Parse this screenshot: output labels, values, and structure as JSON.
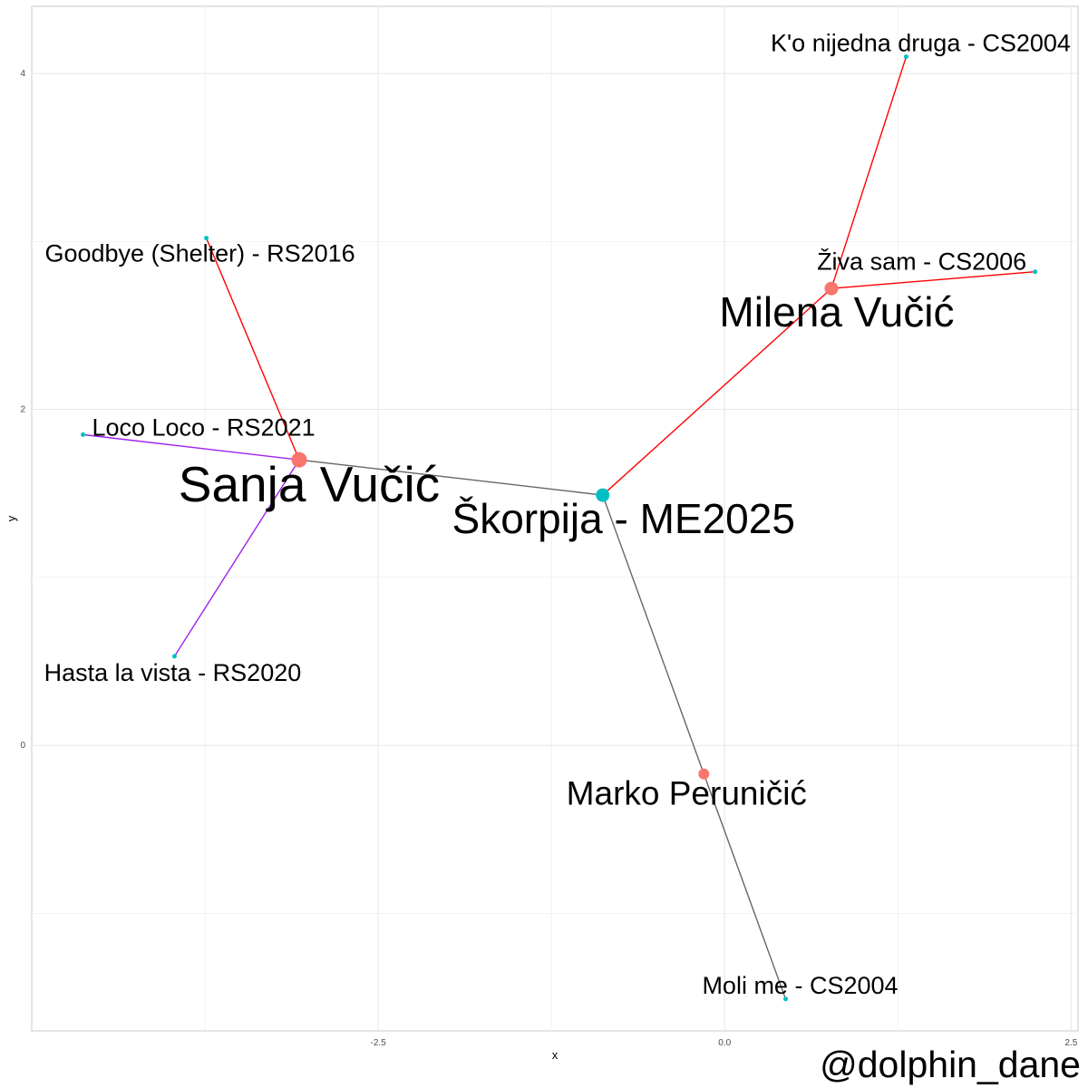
{
  "chart_data": {
    "type": "network",
    "xlabel": "x",
    "ylabel": "y",
    "xlim": [
      -5.0,
      2.55
    ],
    "ylim": [
      -1.7,
      4.4
    ],
    "x_ticks": [
      {
        "value": -2.5,
        "label": "-2.5"
      },
      {
        "value": 0.0,
        "label": "0.0"
      },
      {
        "value": 2.5,
        "label": "2.5"
      }
    ],
    "y_ticks": [
      {
        "value": 0,
        "label": "0"
      },
      {
        "value": 2,
        "label": "2"
      },
      {
        "value": 4,
        "label": "4"
      }
    ],
    "grid": true,
    "colors": {
      "artist": "#F8766D",
      "song": "#00BFC4",
      "edge_red": "#FF0000",
      "edge_purple": "#A020F0",
      "edge_grey": "#666666"
    },
    "nodes": [
      {
        "id": "skorpija",
        "label": "Škorpija - ME2025",
        "x": -0.88,
        "y": 1.49,
        "kind": "song",
        "size": "large"
      },
      {
        "id": "sanja",
        "label": "Sanja Vučić",
        "x": -3.07,
        "y": 1.7,
        "kind": "artist",
        "size": "xlarge"
      },
      {
        "id": "milena",
        "label": "Milena Vučić",
        "x": 0.77,
        "y": 2.72,
        "kind": "artist",
        "size": "large"
      },
      {
        "id": "marko",
        "label": "Marko Peruničić",
        "x": -0.15,
        "y": -0.17,
        "kind": "artist",
        "size": "medium"
      },
      {
        "id": "goodbye",
        "label": "Goodbye (Shelter) - RS2016",
        "x": -3.74,
        "y": 3.02,
        "kind": "song",
        "size": "small"
      },
      {
        "id": "loco",
        "label": "Loco Loco - RS2021",
        "x": -4.63,
        "y": 1.85,
        "kind": "song",
        "size": "small"
      },
      {
        "id": "hasta",
        "label": "Hasta la vista - RS2020",
        "x": -3.97,
        "y": 0.53,
        "kind": "song",
        "size": "small"
      },
      {
        "id": "ko",
        "label": "K'o nijedna druga - CS2004",
        "x": 1.31,
        "y": 4.1,
        "kind": "song",
        "size": "small"
      },
      {
        "id": "ziva",
        "label": "Živa sam - CS2006",
        "x": 2.24,
        "y": 2.82,
        "kind": "song",
        "size": "small"
      },
      {
        "id": "moli",
        "label": "Moli me - CS2004",
        "x": 0.44,
        "y": -1.51,
        "kind": "song",
        "size": "small"
      }
    ],
    "edges": [
      {
        "from": "skorpija",
        "to": "sanja",
        "color": "grey"
      },
      {
        "from": "skorpija",
        "to": "marko",
        "color": "grey"
      },
      {
        "from": "marko",
        "to": "moli",
        "color": "grey"
      },
      {
        "from": "skorpija",
        "to": "milena",
        "color": "red"
      },
      {
        "from": "milena",
        "to": "ko",
        "color": "red"
      },
      {
        "from": "milena",
        "to": "ziva",
        "color": "red"
      },
      {
        "from": "sanja",
        "to": "goodbye",
        "color": "red"
      },
      {
        "from": "sanja",
        "to": "loco",
        "color": "purple"
      },
      {
        "from": "sanja",
        "to": "hasta",
        "color": "purple"
      }
    ]
  },
  "watermark": "@dolphin_dane"
}
